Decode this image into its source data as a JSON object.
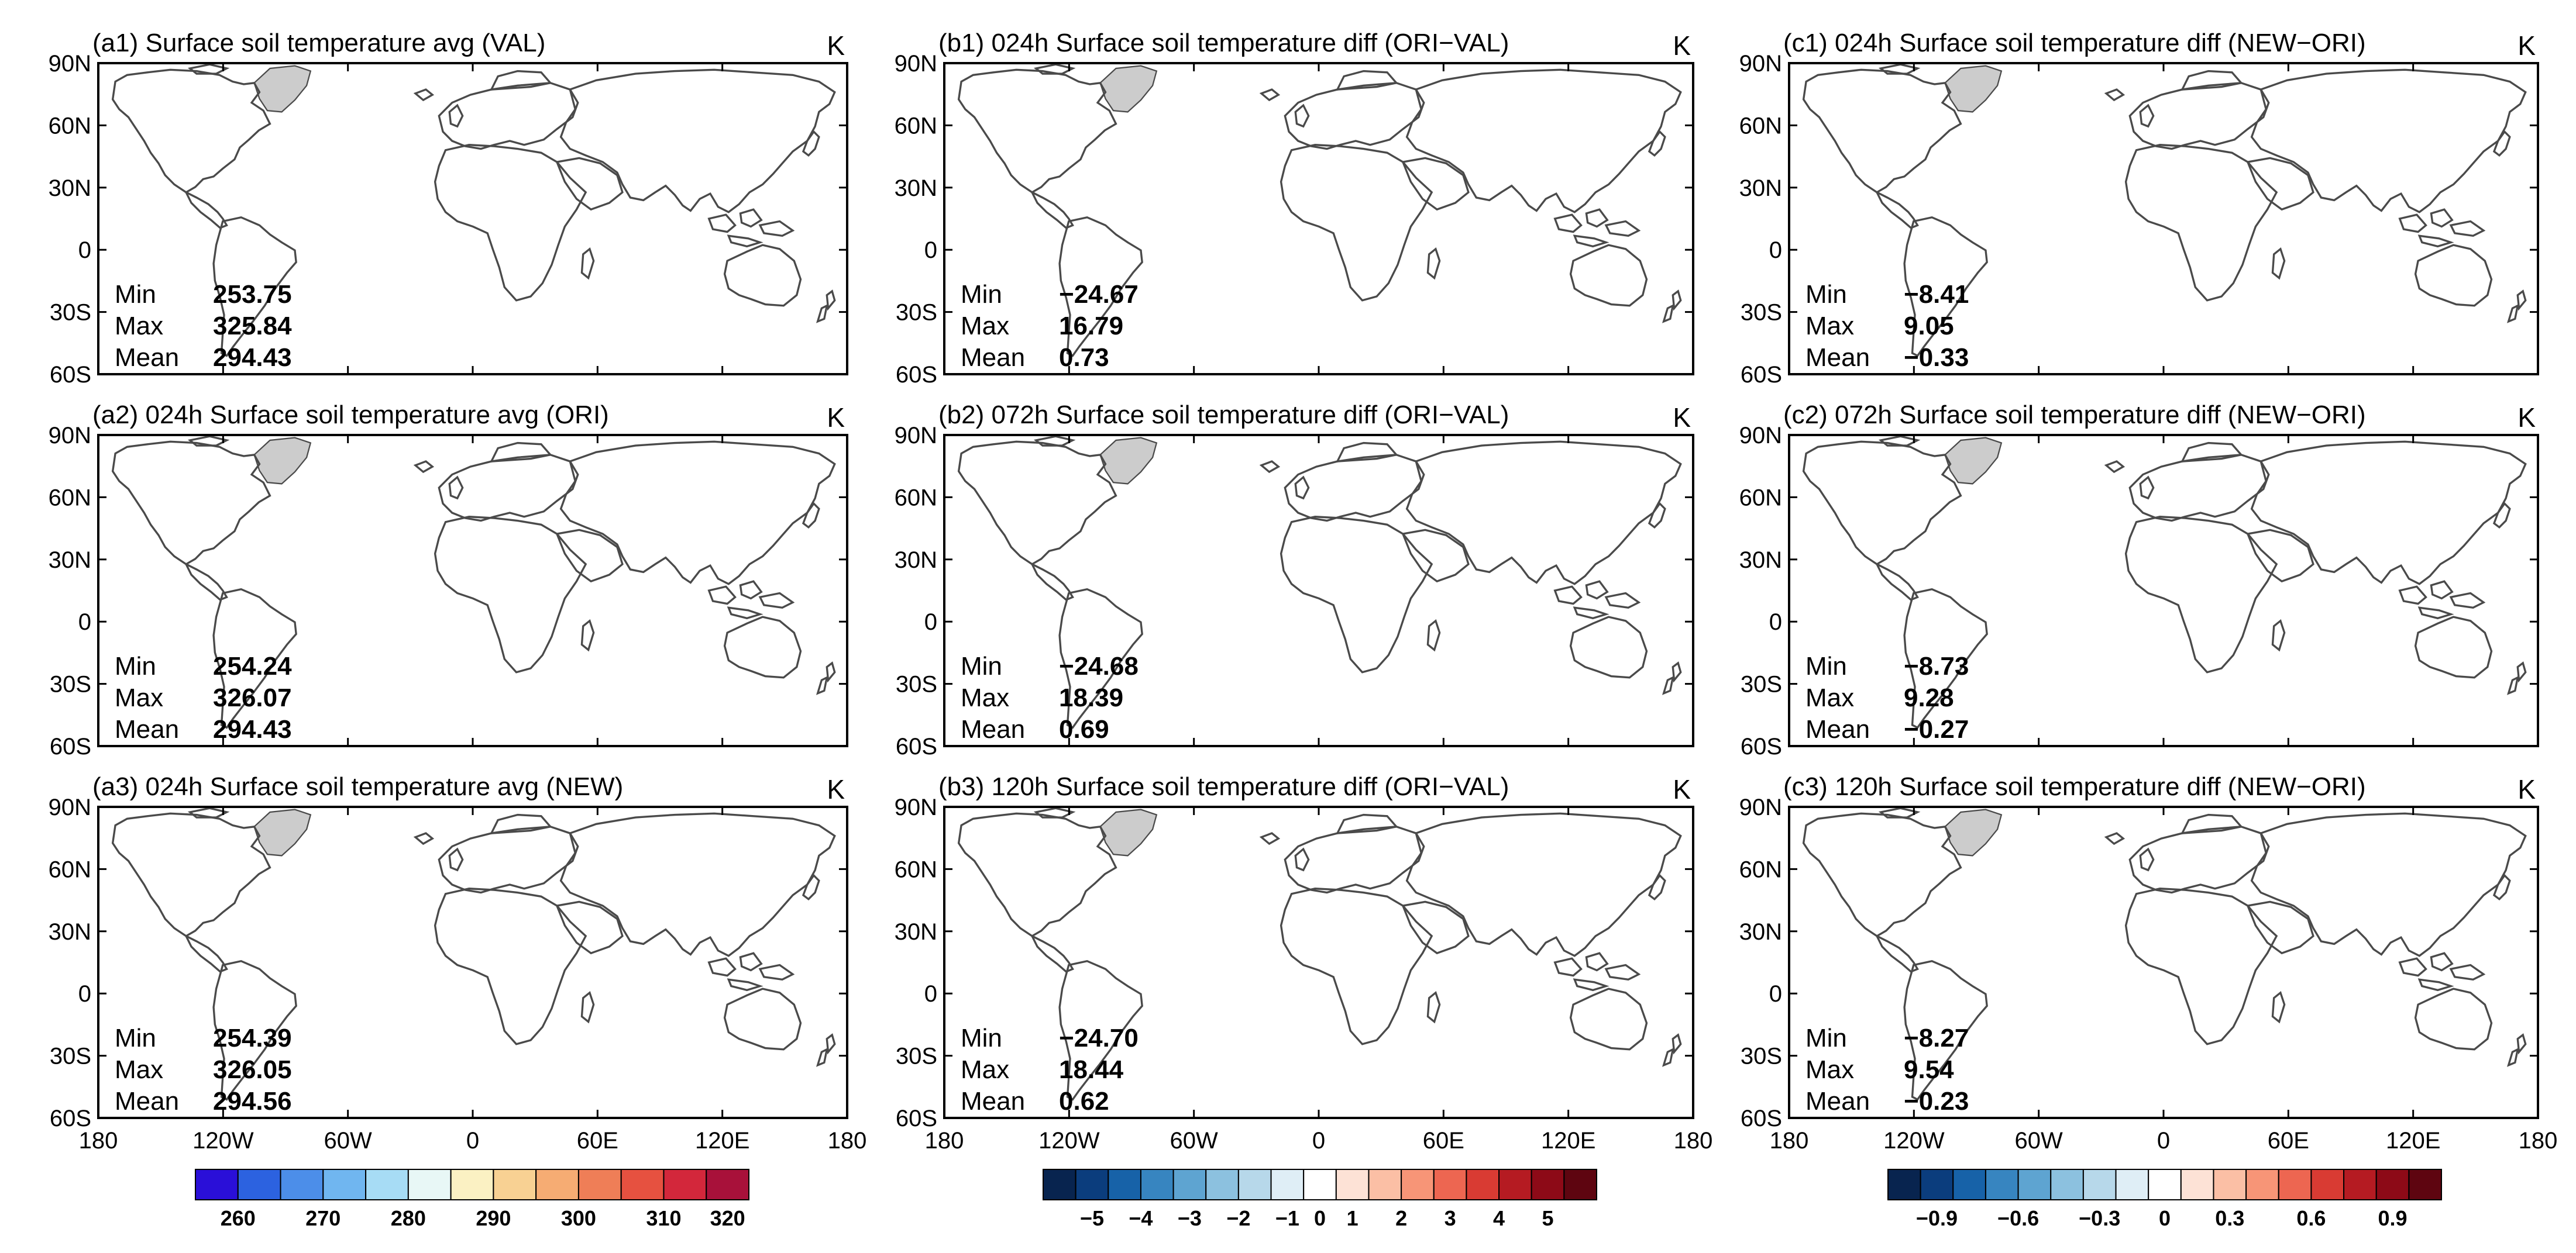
{
  "figure": {
    "panels": [
      {
        "id": "a1",
        "title": "(a1) Surface soil temperature avg (VAL)",
        "unit": "K",
        "scale": "abs",
        "seed": 11,
        "stats": {
          "min": "253.75",
          "max": "325.84",
          "mean": "294.43"
        }
      },
      {
        "id": "b1",
        "title": "(b1) 024h Surface soil temperature diff (ORI−VAL)",
        "unit": "K",
        "scale": "diff",
        "seed": 23,
        "stats": {
          "min": "−24.67",
          "max": "16.79",
          "mean": "0.73"
        }
      },
      {
        "id": "c1",
        "title": "(c1) 024h Surface soil temperature diff (NEW−ORI)",
        "unit": "K",
        "scale": "newdiff",
        "seed": 37,
        "stats": {
          "min": "−8.41",
          "max": "9.05",
          "mean": "−0.33"
        }
      },
      {
        "id": "a2",
        "title": "(a2) 024h Surface soil temperature avg (ORI)",
        "unit": "K",
        "scale": "abs",
        "seed": 41,
        "stats": {
          "min": "254.24",
          "max": "326.07",
          "mean": "294.43"
        }
      },
      {
        "id": "b2",
        "title": "(b2) 072h Surface soil temperature diff (ORI−VAL)",
        "unit": "K",
        "scale": "diff",
        "seed": 53,
        "stats": {
          "min": "−24.68",
          "max": "18.39",
          "mean": "0.69"
        }
      },
      {
        "id": "c2",
        "title": "(c2) 072h Surface soil temperature diff (NEW−ORI)",
        "unit": "K",
        "scale": "newdiff",
        "seed": 67,
        "stats": {
          "min": "−8.73",
          "max": "9.28",
          "mean": "−0.27"
        }
      },
      {
        "id": "a3",
        "title": "(a3) 024h Surface soil temperature avg (NEW)",
        "unit": "K",
        "scale": "abs",
        "seed": 71,
        "stats": {
          "min": "254.39",
          "max": "326.05",
          "mean": "294.56"
        }
      },
      {
        "id": "b3",
        "title": "(b3) 120h Surface soil temperature diff (ORI−VAL)",
        "unit": "K",
        "scale": "diff",
        "seed": 83,
        "stats": {
          "min": "−24.70",
          "max": "18.44",
          "mean": "0.62"
        }
      },
      {
        "id": "c3",
        "title": "(c3) 120h Surface soil temperature diff (NEW−ORI)",
        "unit": "K",
        "scale": "newdiff",
        "seed": 97,
        "stats": {
          "min": "−8.27",
          "max": "9.54",
          "mean": "−0.23"
        }
      }
    ],
    "stat_labels": {
      "min": "Min",
      "max": "Max",
      "mean": "Mean"
    },
    "lat_ticks": [
      "90N",
      "60N",
      "30N",
      "0",
      "30S",
      "60S"
    ],
    "lon_ticks": [
      "180",
      "120W",
      "60W",
      "0",
      "60E",
      "120E",
      "180"
    ],
    "colorbars": [
      {
        "id": "abs",
        "colors": [
          "#2a0fd8",
          "#2c62e0",
          "#4c8ee9",
          "#70b6f0",
          "#a7dcf5",
          "#e8f7f6",
          "#fbf1c3",
          "#f8d193",
          "#f6ac73",
          "#ef7e57",
          "#e65140",
          "#d3273b",
          "#a8113a"
        ],
        "labels": [
          "260",
          "270",
          "280",
          "290",
          "300",
          "310",
          "320"
        ]
      },
      {
        "id": "diff",
        "colors": [
          "#08244f",
          "#0b3d7d",
          "#1762a8",
          "#3785c0",
          "#5ea4d1",
          "#8cc1df",
          "#b7d8ea",
          "#dfeef6",
          "#ffffff",
          "#fde2d6",
          "#fbbfa5",
          "#f79577",
          "#ed6651",
          "#d93b33",
          "#b51b22",
          "#8d0a17",
          "#5e0510"
        ],
        "labels": [
          "−5",
          "−4",
          "−3",
          "−2",
          "−1",
          "0",
          "1",
          "2",
          "3",
          "4",
          "5"
        ]
      },
      {
        "id": "newdiff",
        "colors": [
          "#08244f",
          "#0b3d7d",
          "#1762a8",
          "#3785c0",
          "#5ea4d1",
          "#8cc1df",
          "#b7d8ea",
          "#dfeef6",
          "#ffffff",
          "#fde2d6",
          "#fbbfa5",
          "#f79577",
          "#ed6651",
          "#d93b33",
          "#b51b22",
          "#8d0a17",
          "#5e0510"
        ],
        "labels": [
          "−0.9",
          "−0.6",
          "−0.3",
          "0",
          "0.3",
          "0.6",
          "0.9"
        ]
      }
    ],
    "ocean_color": "#ffffff",
    "ice_color": "#cccccc",
    "coast_color": "#4a4a4a"
  }
}
